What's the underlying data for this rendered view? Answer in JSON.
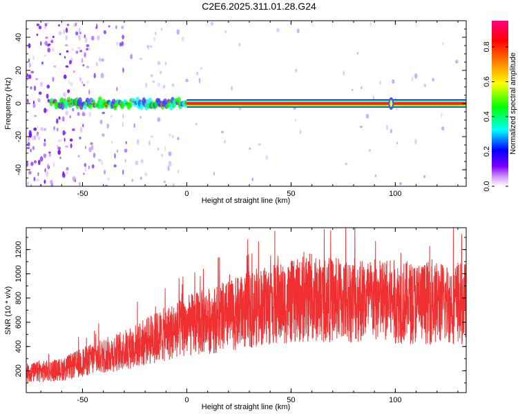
{
  "title": "C2E6.2025.311.01.28.G24",
  "chart_data": [
    {
      "type": "heatmap",
      "xlabel": "Height of straight line (km)",
      "ylabel": "Frequency (Hz)",
      "xlim": [
        -77,
        134
      ],
      "ylim": [
        -50,
        50
      ],
      "x_ticks": [
        "-50",
        "0",
        "50",
        "100"
      ],
      "x_tick_values": [
        -50,
        0,
        50,
        100
      ],
      "y_ticks": [
        "-40",
        "-20",
        "0",
        "20",
        "40"
      ],
      "y_tick_values": [
        -40,
        -20,
        0,
        20,
        40
      ],
      "colorbar": {
        "label": "Normalized spectral amplitude",
        "range": [
          0,
          0.95
        ],
        "ticks": [
          "0.0",
          "0.2",
          "0.4",
          "0.6",
          "0.8"
        ],
        "tick_values": [
          0,
          0.2,
          0.4,
          0.6,
          0.8
        ],
        "colors": [
          "#ffffff",
          "#d090ff",
          "#8000ff",
          "#0000ff",
          "#00ffff",
          "#00ff00",
          "#ffff00",
          "#ff8000",
          "#ff0000",
          "#ff0080"
        ]
      },
      "main_line": {
        "frequency": 0,
        "from_x": 0,
        "to_x": 134,
        "amplitude": 0.9
      },
      "noise_region": {
        "from_x": -77,
        "to_x": 0
      }
    },
    {
      "type": "line",
      "xlabel": "Height of straight line (km)",
      "ylabel": "SNR (10 * v/v)",
      "xlim": [
        -77,
        134
      ],
      "ylim": [
        20,
        1380
      ],
      "x_ticks": [
        "-50",
        "0",
        "50",
        "100"
      ],
      "x_tick_values": [
        -50,
        0,
        50,
        100
      ],
      "y_ticks": [
        "200",
        "400",
        "600",
        "800",
        "1000",
        "1200"
      ],
      "y_tick_values": [
        200,
        400,
        600,
        800,
        1000,
        1200
      ],
      "line_color": "#f03030",
      "trend": [
        {
          "x": -77,
          "y": 180
        },
        {
          "x": -60,
          "y": 210
        },
        {
          "x": -45,
          "y": 300
        },
        {
          "x": -30,
          "y": 370
        },
        {
          "x": -15,
          "y": 470
        },
        {
          "x": 0,
          "y": 570
        },
        {
          "x": 20,
          "y": 650
        },
        {
          "x": 35,
          "y": 730
        },
        {
          "x": 60,
          "y": 790
        },
        {
          "x": 90,
          "y": 780
        },
        {
          "x": 110,
          "y": 760
        },
        {
          "x": 134,
          "y": 760
        }
      ]
    }
  ]
}
